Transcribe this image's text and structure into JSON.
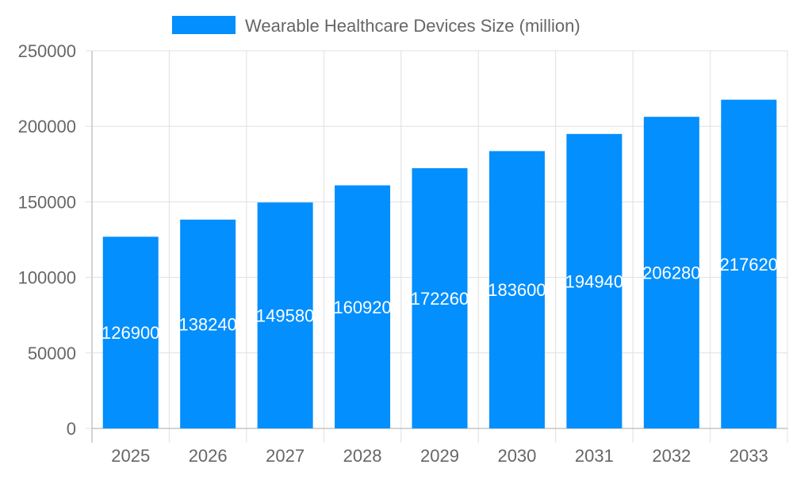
{
  "chart_data": {
    "type": "bar",
    "categories": [
      "2025",
      "2026",
      "2027",
      "2028",
      "2029",
      "2030",
      "2031",
      "2032",
      "2033"
    ],
    "series": [
      {
        "name": "Wearable Healthcare Devices Size (million)",
        "values": [
          126900,
          138240,
          149580,
          160920,
          172260,
          183600,
          194940,
          206280,
          217620
        ]
      }
    ],
    "ylim": [
      0,
      250000
    ],
    "yticks": [
      "0",
      "50000",
      "100000",
      "150000",
      "200000",
      "250000"
    ],
    "xlabel": "",
    "ylabel": "",
    "grid": true,
    "legend": "top-center",
    "colors": {
      "bar": "#038ffd",
      "grid": "#e0e0e0",
      "axis": "#aaaaaa",
      "text": "#666666",
      "label": "#ffffff"
    }
  }
}
